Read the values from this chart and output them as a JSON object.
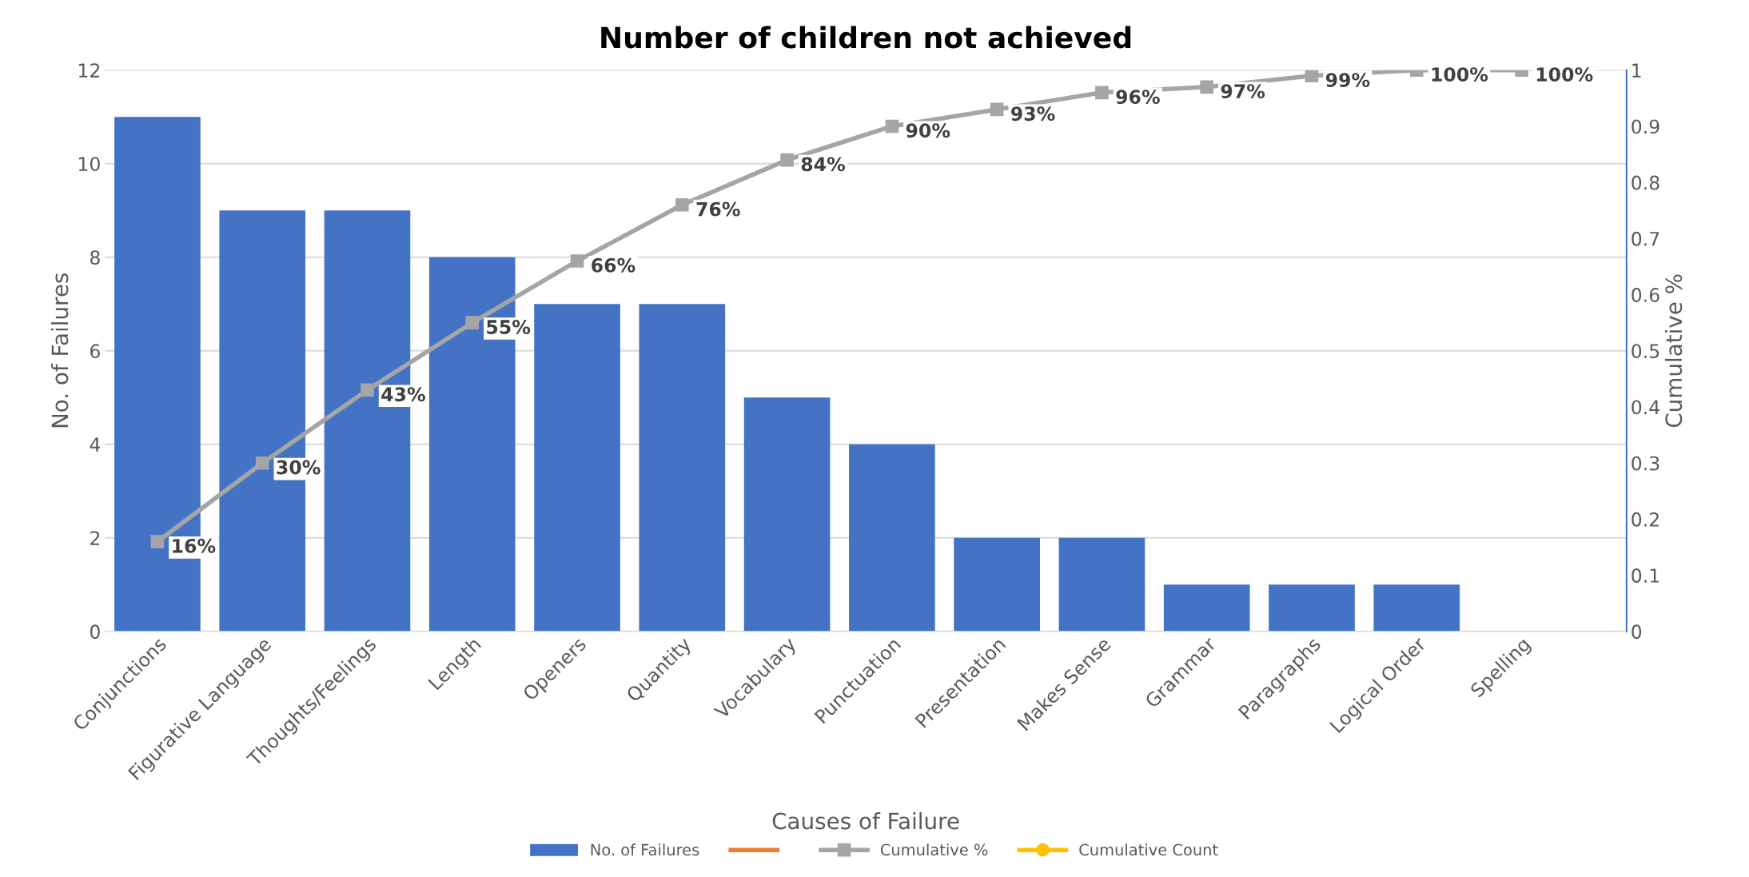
{
  "chart_data": {
    "type": "bar",
    "title": "Number of children not achieved",
    "xlabel": "Causes of Failure",
    "ylabel": "No. of Failures",
    "y2label": "Cumulative %",
    "categories": [
      "Conjunctions",
      "Figurative Language",
      "Thoughts/Feelings",
      "Length",
      "Openers",
      "Quantity",
      "Vocabulary",
      "Punctuation",
      "Presentation",
      "Makes Sense",
      "Grammar",
      "Paragraphs",
      "Logical Order",
      "Spelling"
    ],
    "series": [
      {
        "name": "No. of Failures",
        "color": "#4472c4",
        "values": [
          11,
          9,
          9,
          8,
          7,
          7,
          5,
          4,
          2,
          2,
          1,
          1,
          1,
          0
        ]
      },
      {
        "type": "line",
        "color": "#ed7d31",
        "values": [
          null,
          null,
          null,
          null,
          null,
          null,
          null,
          null,
          null,
          null,
          null,
          null,
          null,
          null
        ]
      },
      {
        "name": "Cumulative %",
        "type": "line",
        "axis": "y2",
        "color": "#a5a5a5",
        "marker": "square",
        "values": [
          0.16,
          0.3,
          0.43,
          0.55,
          0.66,
          0.76,
          0.84,
          0.9,
          0.93,
          0.96,
          0.97,
          0.99,
          1,
          1
        ],
        "value_labels": [
          "16%",
          "30%",
          "43%",
          "55%",
          "66%",
          "76%",
          "84%",
          "90%",
          "93%",
          "96%",
          "97%",
          "99%",
          "100%",
          "100%"
        ]
      },
      {
        "name": "Cumulative Count",
        "type": "line",
        "color": "#ffc000",
        "marker": "circle",
        "values": [
          null,
          null,
          null,
          null,
          null,
          null,
          null,
          null,
          null,
          null,
          null,
          null,
          null,
          null
        ]
      }
    ],
    "ylim": [
      0,
      12
    ],
    "yticks": [
      0,
      2,
      4,
      6,
      8,
      10,
      12
    ],
    "y2lim": [
      0,
      1
    ],
    "y2ticks": [
      0,
      0.1,
      0.2,
      0.3,
      0.4,
      0.5,
      0.6,
      0.7,
      0.8,
      0.9,
      1
    ],
    "grid": "y",
    "legend": "bottom"
  }
}
